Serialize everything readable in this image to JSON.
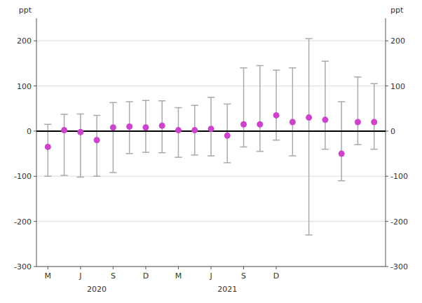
{
  "chart_data": {
    "type": "errorbar",
    "categories": [
      "M",
      null,
      "J",
      null,
      "S",
      null,
      "D",
      null,
      "M",
      null,
      "J",
      null,
      "S",
      null,
      "D",
      null,
      null,
      null,
      null,
      null,
      null
    ],
    "values": [
      -35,
      2,
      -2,
      -20,
      8,
      10,
      8,
      12,
      2,
      2,
      5,
      -10,
      15,
      15,
      35,
      20,
      30,
      25,
      -50,
      20,
      20
    ],
    "error_upper": [
      50,
      35,
      40,
      55,
      55,
      55,
      60,
      55,
      50,
      55,
      70,
      70,
      125,
      130,
      100,
      120,
      175,
      130,
      115,
      100,
      85
    ],
    "error_lower": [
      65,
      100,
      100,
      80,
      100,
      60,
      55,
      60,
      60,
      55,
      60,
      60,
      50,
      60,
      55,
      75,
      260,
      65,
      60,
      50,
      60
    ],
    "color": "#CC44CC",
    "ylabel": "ppt",
    "y2label": "ppt",
    "ylim": [
      -300,
      250
    ],
    "yticks": [
      -300,
      -200,
      -100,
      0,
      100,
      200
    ],
    "y2lim": [
      -300,
      250
    ],
    "y2ticks": [
      -300,
      -200,
      -100,
      0,
      100,
      200
    ],
    "annotations": [
      {
        "text": "2020",
        "x": 3
      },
      {
        "text": "2021",
        "x": 11
      }
    ],
    "grid": true
  }
}
